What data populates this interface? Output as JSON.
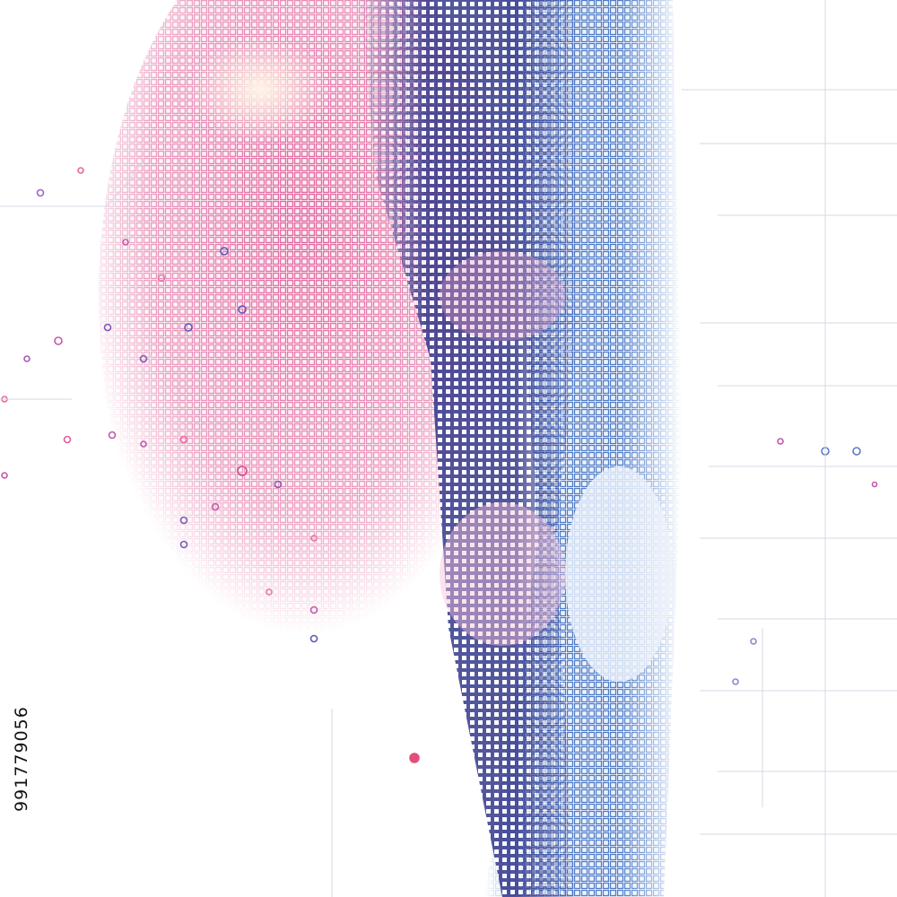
{
  "image": {
    "watermark_id": "991779056"
  }
}
